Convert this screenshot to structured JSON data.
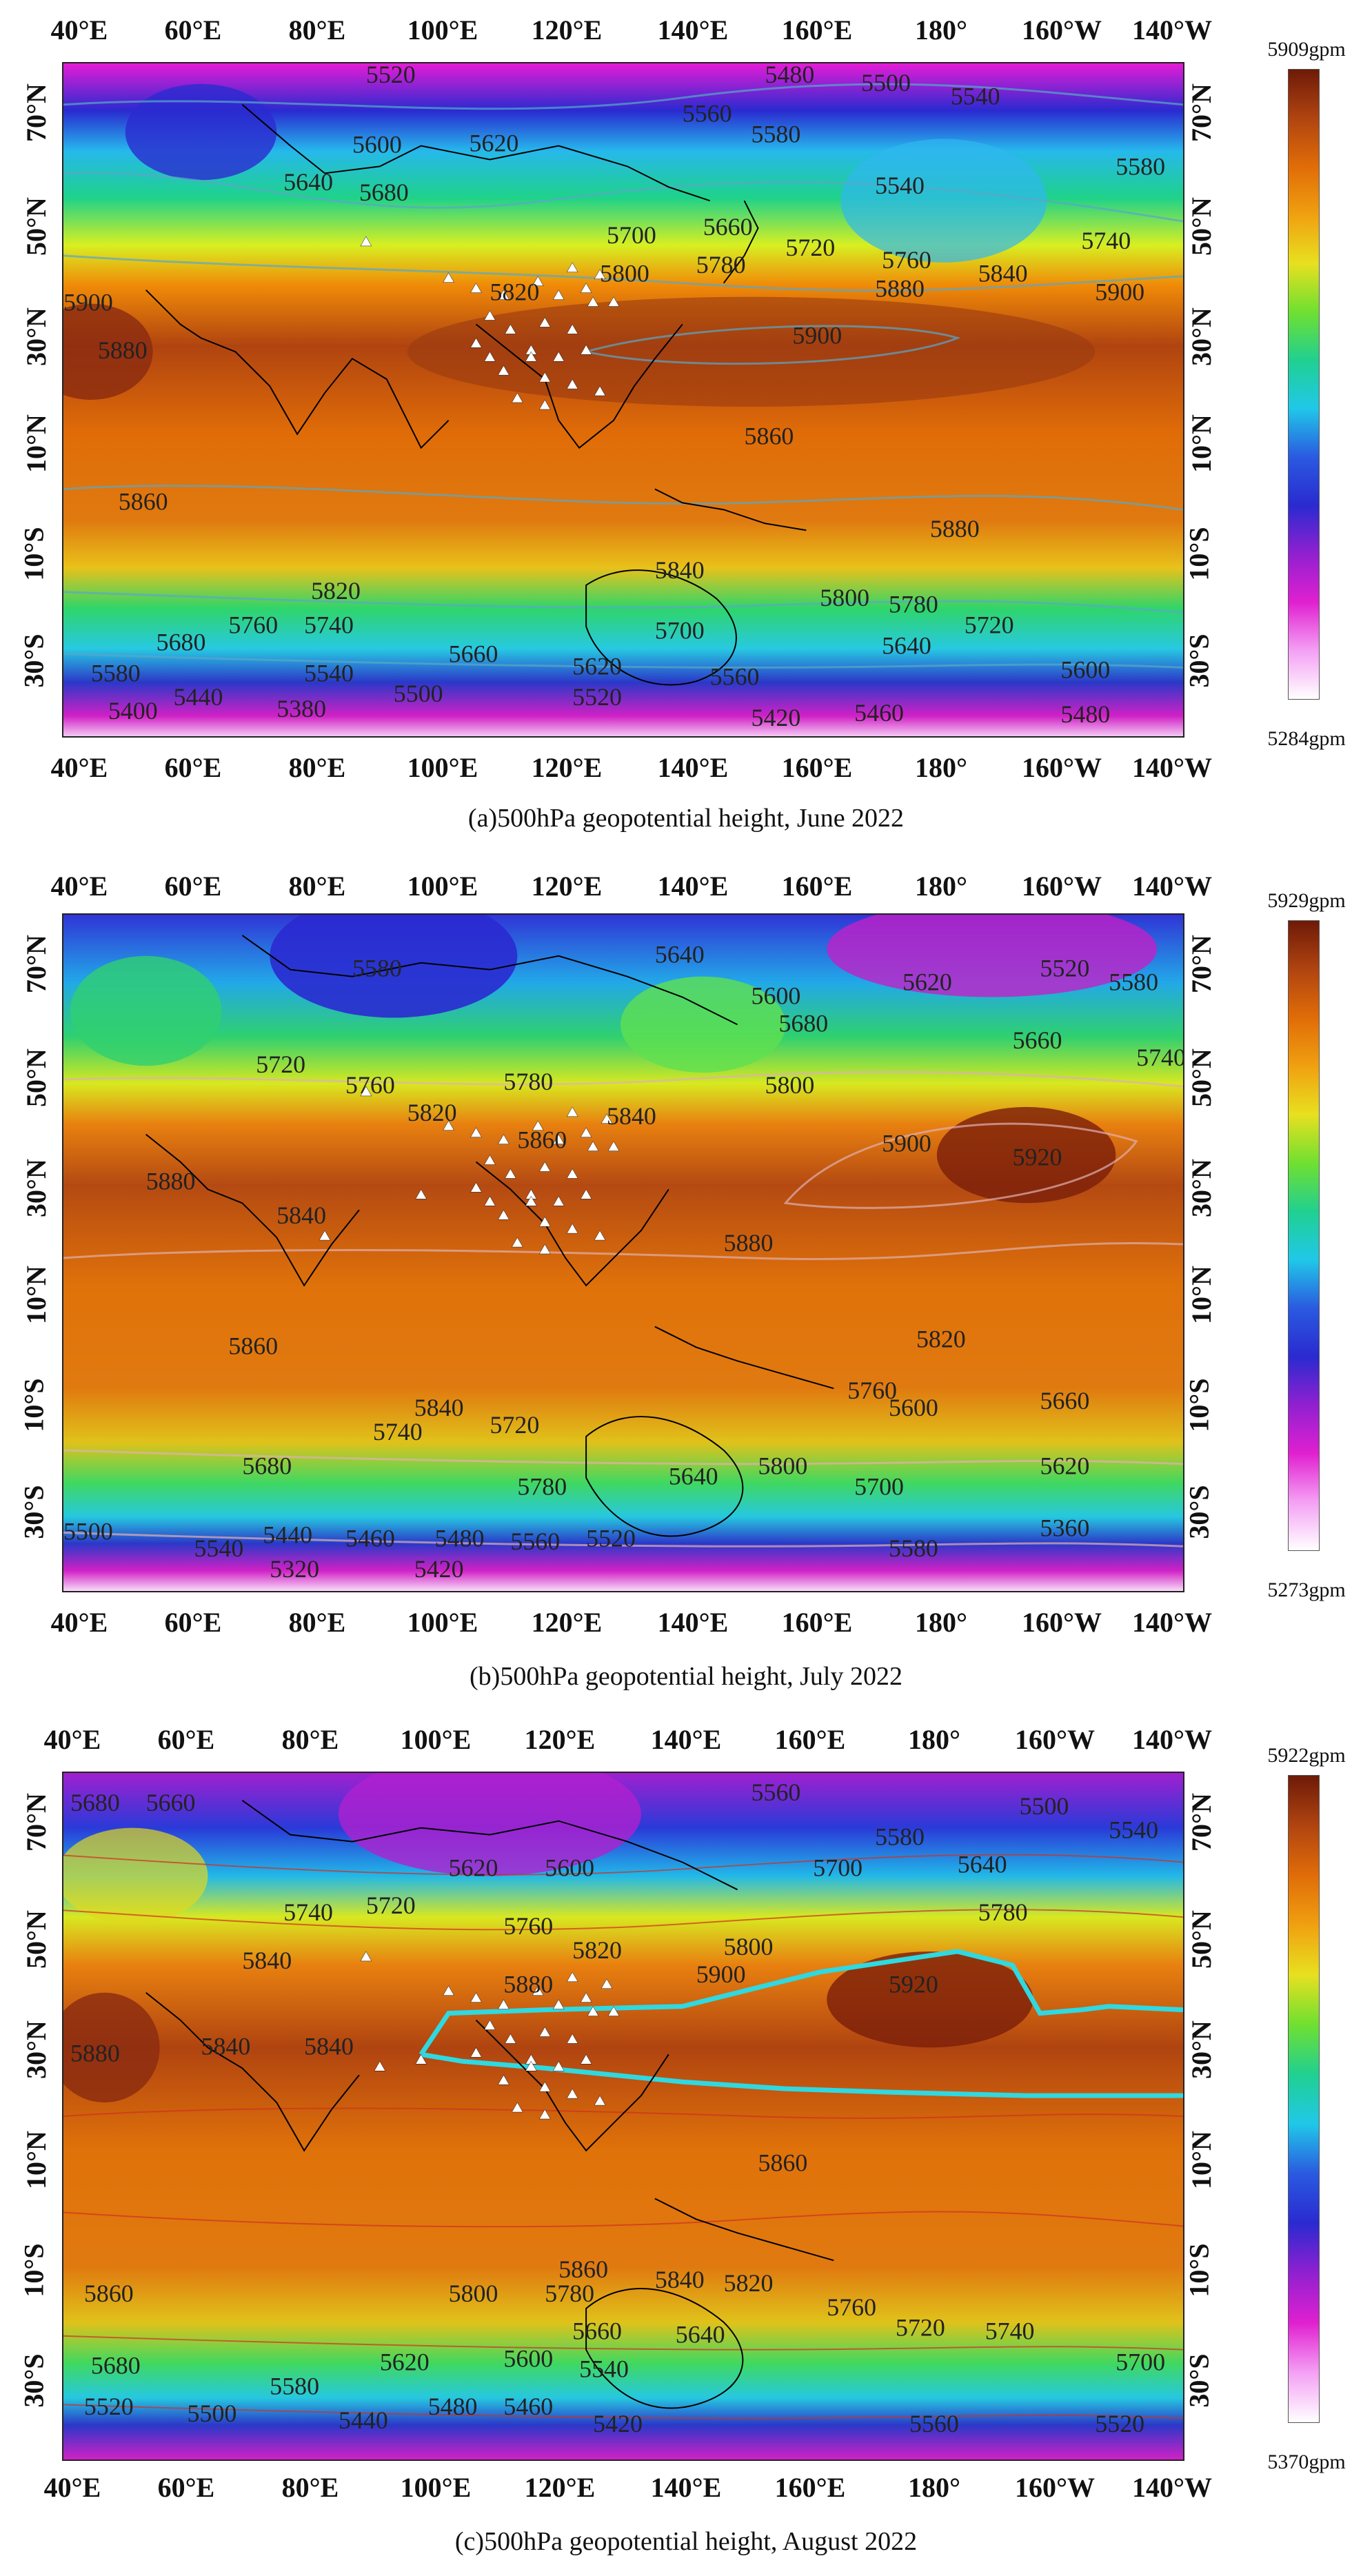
{
  "panels": [
    {
      "id": "a",
      "caption": "(a)500hPa geopotential height,  June 2022",
      "colorbar": {
        "max_label": "5909gpm",
        "min_label": "5284gpm"
      },
      "lon_ticks": [
        "40°E",
        "60°E",
        "80°E",
        "100°E",
        "120°E",
        "140°E",
        "160°E",
        "180°",
        "160°W",
        "140°W"
      ],
      "lat_ticks": [
        "70°N",
        "50°N",
        "30°N",
        "10°N",
        "10°S",
        "30°S"
      ],
      "contour_labels": [
        "5520",
        "5480",
        "5500",
        "5540",
        "5560",
        "5580",
        "5600",
        "5620",
        "5580",
        "5540",
        "5640",
        "5680",
        "5660",
        "5700",
        "5720",
        "5760",
        "5740",
        "5840",
        "5820",
        "5800",
        "5780",
        "5880",
        "5900",
        "5900",
        "5900",
        "5880",
        "5860",
        "5860",
        "5880",
        "5820",
        "5840",
        "5760",
        "5740",
        "5680",
        "5800",
        "5780",
        "5720",
        "5580",
        "5700",
        "5640",
        "5660",
        "5620",
        "5600",
        "5560",
        "5540",
        "5500",
        "5520",
        "5440",
        "5400",
        "5380",
        "5420",
        "5460",
        "5480"
      ],
      "stations_count": 27
    },
    {
      "id": "b",
      "caption": "(b)500hPa geopotential height, July 2022",
      "colorbar": {
        "max_label": "5929gpm",
        "min_label": "5273gpm"
      },
      "lon_ticks": [
        "40°E",
        "60°E",
        "80°E",
        "100°E",
        "120°E",
        "140°E",
        "160°E",
        "180°",
        "160°W",
        "140°W"
      ],
      "lat_ticks": [
        "70°N",
        "50°N",
        "30°N",
        "10°N",
        "10°S",
        "30°S"
      ],
      "contour_labels": [
        "5580",
        "5640",
        "5600",
        "5620",
        "5520",
        "5580",
        "5680",
        "5660",
        "5720",
        "5760",
        "5780",
        "5840",
        "5820",
        "5800",
        "5740",
        "5880",
        "5860",
        "5840",
        "5900",
        "5920",
        "5880",
        "5860",
        "5820",
        "5840",
        "5760",
        "5720",
        "5740",
        "5600",
        "5660",
        "5680",
        "5780",
        "5640",
        "5800",
        "5700",
        "5620",
        "5500",
        "5540",
        "5440",
        "5460",
        "5480",
        "5560",
        "5520",
        "5580",
        "5360",
        "5320",
        "5420"
      ],
      "stations_count": 29
    },
    {
      "id": "c",
      "caption": "(c)500hPa geopotential height, August 2022",
      "colorbar": {
        "max_label": "5922gpm",
        "min_label": "5370gpm"
      },
      "lon_ticks": [
        "40°E",
        "60°E",
        "80°E",
        "100°E",
        "120°E",
        "140°E",
        "160°E",
        "180°",
        "160°W",
        "140°W"
      ],
      "lat_ticks": [
        "70°N",
        "50°N",
        "30°N",
        "10°N",
        "10°S",
        "30°S"
      ],
      "contour_labels": [
        "5680",
        "5660",
        "5560",
        "5500",
        "5580",
        "5540",
        "5620",
        "5600",
        "5700",
        "5640",
        "5740",
        "5720",
        "5760",
        "5780",
        "5840",
        "5820",
        "5800",
        "5900",
        "5880",
        "5920",
        "5840",
        "5880",
        "5840",
        "5860",
        "5860",
        "5800",
        "5780",
        "5860",
        "5840",
        "5820",
        "5760",
        "5720",
        "5740",
        "5680",
        "5620",
        "5600",
        "5660",
        "5540",
        "5640",
        "5700",
        "5580",
        "5520",
        "5500",
        "5440",
        "5480",
        "5460",
        "5420",
        "5560",
        "5520"
      ],
      "stations_count": 28
    }
  ]
}
